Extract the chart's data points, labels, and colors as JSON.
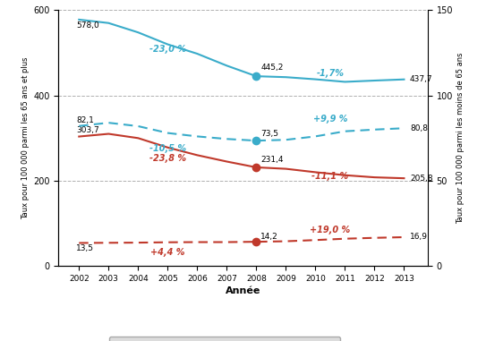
{
  "years": [
    2002,
    2003,
    2004,
    2005,
    2006,
    2007,
    2008,
    2009,
    2010,
    2011,
    2012,
    2013
  ],
  "hommes_ge65": [
    578.0,
    570.0,
    548.0,
    520.0,
    498.0,
    470.0,
    445.2,
    443.0,
    438.0,
    432.0,
    435.0,
    437.7
  ],
  "femmes_ge65": [
    303.7,
    310.0,
    300.0,
    278.0,
    260.0,
    245.0,
    231.4,
    228.0,
    220.0,
    213.0,
    208.0,
    205.8
  ],
  "hommes_lt65": [
    82.1,
    84.0,
    82.0,
    78.0,
    76.0,
    74.5,
    73.5,
    74.0,
    76.0,
    79.0,
    80.0,
    80.8
  ],
  "femmes_lt65": [
    13.5,
    13.6,
    13.7,
    13.9,
    14.0,
    14.0,
    14.2,
    14.5,
    15.2,
    16.0,
    16.5,
    16.9
  ],
  "color_hommes": "#3aacca",
  "color_femmes": "#c0392b",
  "ylim_left": [
    0,
    600
  ],
  "ylim_right": [
    0,
    150
  ],
  "yticks_left": [
    0,
    200,
    400,
    600
  ],
  "yticks_right": [
    0,
    50,
    100,
    150
  ],
  "ylabel_left": "Taux pour 100 000 parmi les 65 ans et plus",
  "ylabel_right": "Taux pour 100 000 parmi les moins de 65 ans",
  "xlabel": "Année",
  "xlim": [
    2001.3,
    2013.8
  ],
  "background_color": "#ffffff",
  "legend_background": "#d4d4d4"
}
